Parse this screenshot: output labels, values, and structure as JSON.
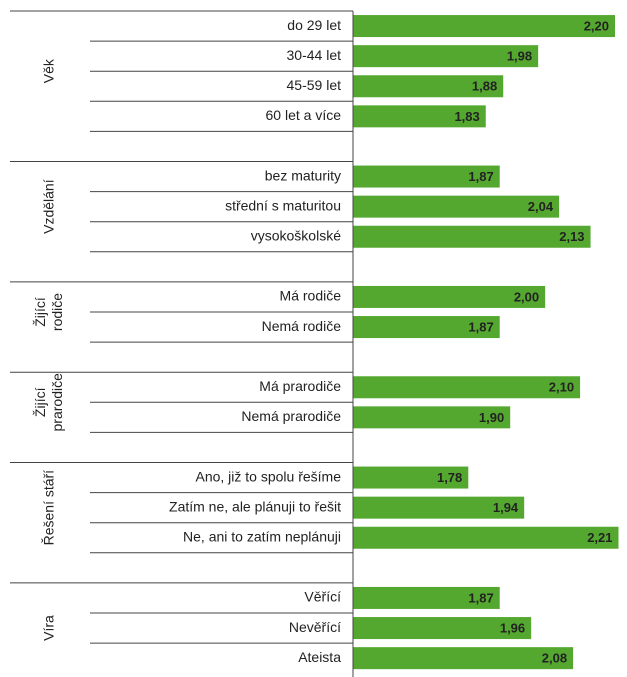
{
  "chart_data": {
    "type": "grouped_hbar",
    "color": "#55a82f",
    "xlim": [
      1.45,
      2.22
    ],
    "groups": [
      {
        "label": [
          "Věk"
        ],
        "categories": [
          "do 29 let",
          "30-44 let",
          "45-59 let",
          "60 let a více"
        ],
        "values": [
          2.2,
          1.98,
          1.88,
          1.83
        ],
        "value_labels": [
          "2,20",
          "1,98",
          "1,88",
          "1,83"
        ]
      },
      {
        "label": [
          "Vzdělání"
        ],
        "categories": [
          "bez maturity",
          "střední s maturitou",
          "vysokoškolské"
        ],
        "values": [
          1.87,
          2.04,
          2.13
        ],
        "value_labels": [
          "1,87",
          "2,04",
          "2,13"
        ]
      },
      {
        "label": [
          "Žijící",
          "rodiče"
        ],
        "categories": [
          "Má rodiče",
          "Nemá rodiče"
        ],
        "values": [
          2.0,
          1.87
        ],
        "value_labels": [
          "2,00",
          "1,87"
        ]
      },
      {
        "label": [
          "Žijící",
          "prarodiče"
        ],
        "categories": [
          "Má prarodiče",
          "Nemá prarodiče"
        ],
        "values": [
          2.1,
          1.9
        ],
        "value_labels": [
          "2,10",
          "1,90"
        ]
      },
      {
        "label": [
          "Řešení stáří"
        ],
        "categories": [
          "Ano,  již to spolu řešíme",
          "Zatím ne, ale plánuji to řešit",
          "Ne, ani to zatím neplánuji"
        ],
        "values": [
          1.78,
          1.94,
          2.21
        ],
        "value_labels": [
          "1,78",
          "1,94",
          "2,21"
        ]
      },
      {
        "label": [
          "Víra"
        ],
        "categories": [
          "Věřící",
          "Nevěřící",
          "Ateista"
        ],
        "values": [
          1.87,
          1.96,
          2.08
        ],
        "value_labels": [
          "1,87",
          "1,96",
          "2,08"
        ]
      }
    ]
  }
}
